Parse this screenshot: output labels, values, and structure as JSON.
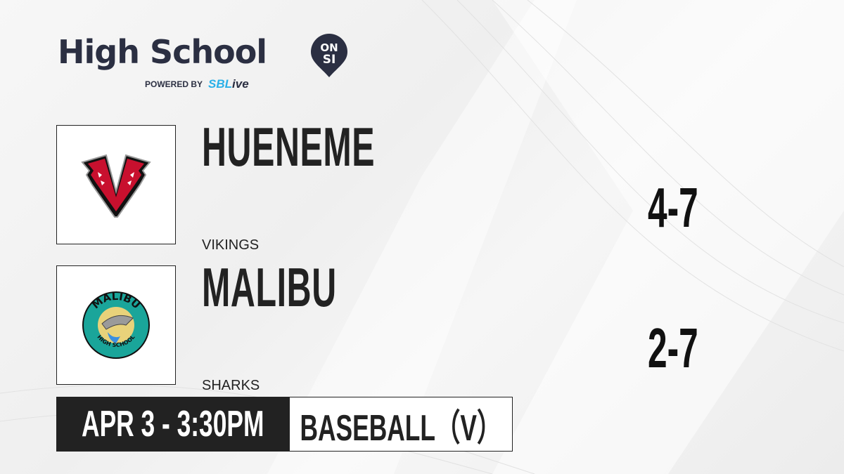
{
  "brand": {
    "title": "High School",
    "badge_top": "ON",
    "badge_bottom": "SI",
    "powered_by": "POWERED BY",
    "partner_prefix": "SBL",
    "partner_suffix": "ive"
  },
  "teams": [
    {
      "name": "HUENEME",
      "mascot": "VIKINGS",
      "record": "4-7",
      "logo": "vikings-v-logo",
      "logo_color": "#c8102e"
    },
    {
      "name": "MALIBU",
      "mascot": "SHARKS",
      "record": "2-7",
      "logo": "malibu-high-school-shark-logo",
      "logo_color": "#1aa59a",
      "logo_text_top": "MALIBU",
      "logo_text_bottom": "HIGH SCHOOL"
    }
  ],
  "game": {
    "datetime": "APR 3 - 3:30PM",
    "sport": "BASEBALL（V）"
  }
}
